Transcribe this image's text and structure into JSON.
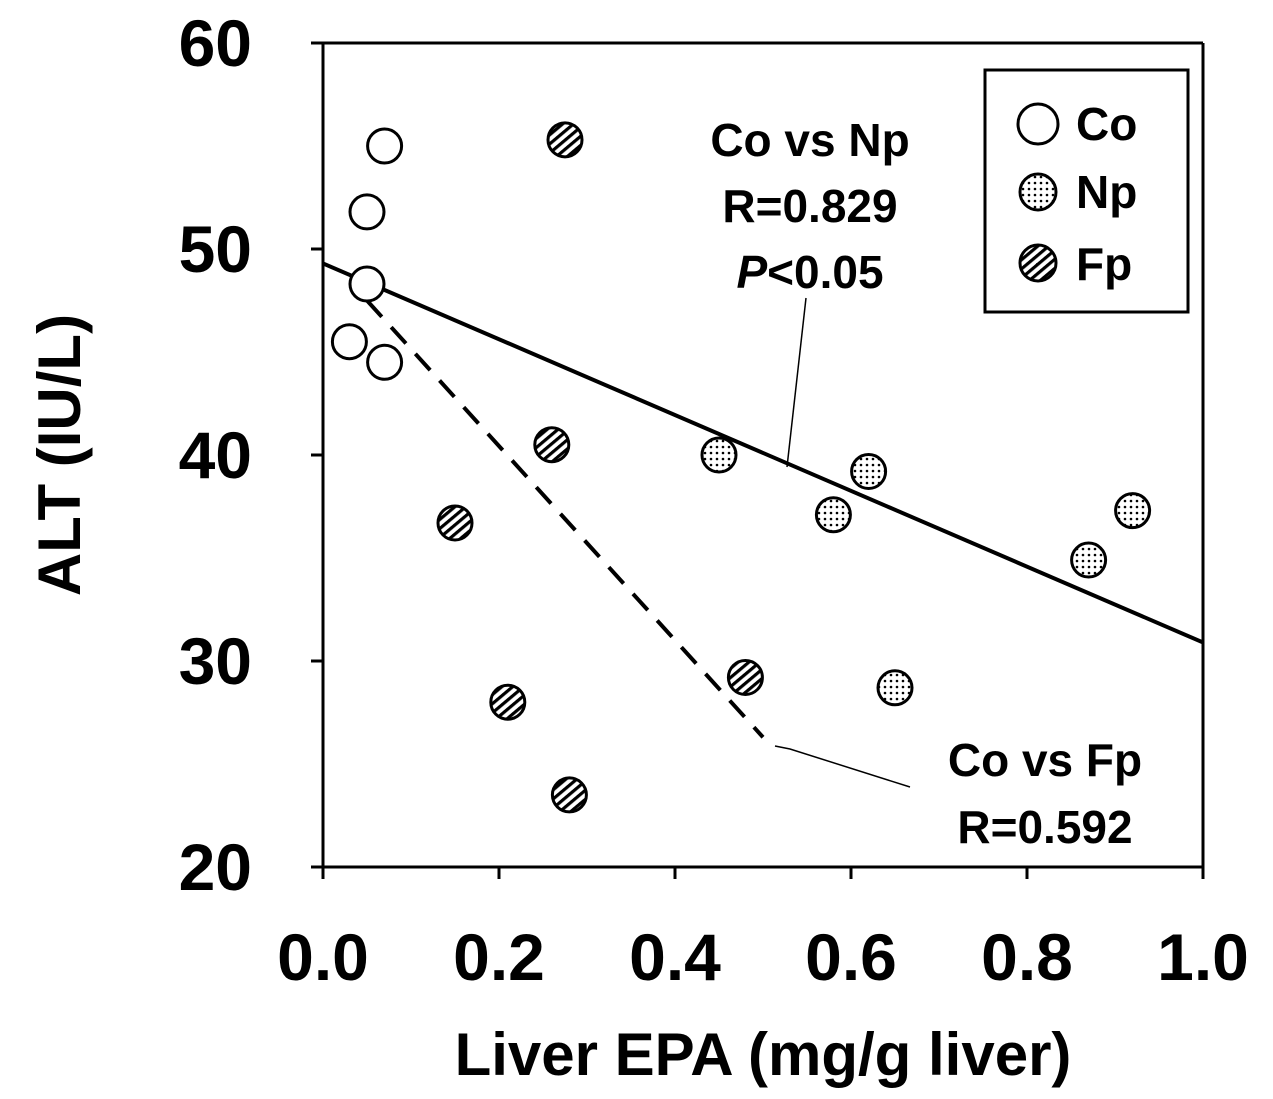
{
  "chart_data": {
    "type": "scatter",
    "xlabel": "Liver EPA (mg/g liver)",
    "ylabel": "ALT (IU/L)",
    "xlim": [
      0.0,
      1.0
    ],
    "ylim": [
      20,
      60
    ],
    "x_ticks": [
      "0.0",
      "0.2",
      "0.4",
      "0.6",
      "0.8",
      "1.0"
    ],
    "y_ticks": [
      "20",
      "30",
      "40",
      "50",
      "60"
    ],
    "grid": false,
    "legend_position": "top-right",
    "series": [
      {
        "name": "Co",
        "marker": "open-circle",
        "points": [
          [
            0.07,
            55.0
          ],
          [
            0.05,
            51.8
          ],
          [
            0.05,
            48.3
          ],
          [
            0.03,
            45.5
          ],
          [
            0.07,
            44.5
          ]
        ]
      },
      {
        "name": "Np",
        "marker": "dotted-circle",
        "points": [
          [
            0.45,
            40.0
          ],
          [
            0.62,
            39.2
          ],
          [
            0.58,
            37.1
          ],
          [
            0.92,
            37.3
          ],
          [
            0.87,
            34.9
          ],
          [
            0.65,
            28.7
          ]
        ]
      },
      {
        "name": "Fp",
        "marker": "striped-circle",
        "points": [
          [
            0.275,
            55.3
          ],
          [
            0.26,
            40.5
          ],
          [
            0.15,
            36.7
          ],
          [
            0.21,
            28.0
          ],
          [
            0.48,
            29.2
          ],
          [
            0.28,
            23.5
          ]
        ]
      }
    ],
    "regression_lines": [
      {
        "label": "Co vs Np",
        "style": "solid",
        "x": [
          0.0,
          1.0
        ],
        "y": [
          49.3,
          30.9
        ]
      },
      {
        "label": "Co vs Fp",
        "style": "dashed",
        "x": [
          0.05,
          0.5
        ],
        "y": [
          47.5,
          26.3
        ]
      }
    ],
    "annotations": [
      {
        "lines": [
          "Co vs Np",
          "R=0.829",
          "<0.05"
        ],
        "italic_prefix_line3": "P"
      },
      {
        "lines": [
          "Co vs Fp",
          "R=0.592"
        ]
      }
    ]
  }
}
